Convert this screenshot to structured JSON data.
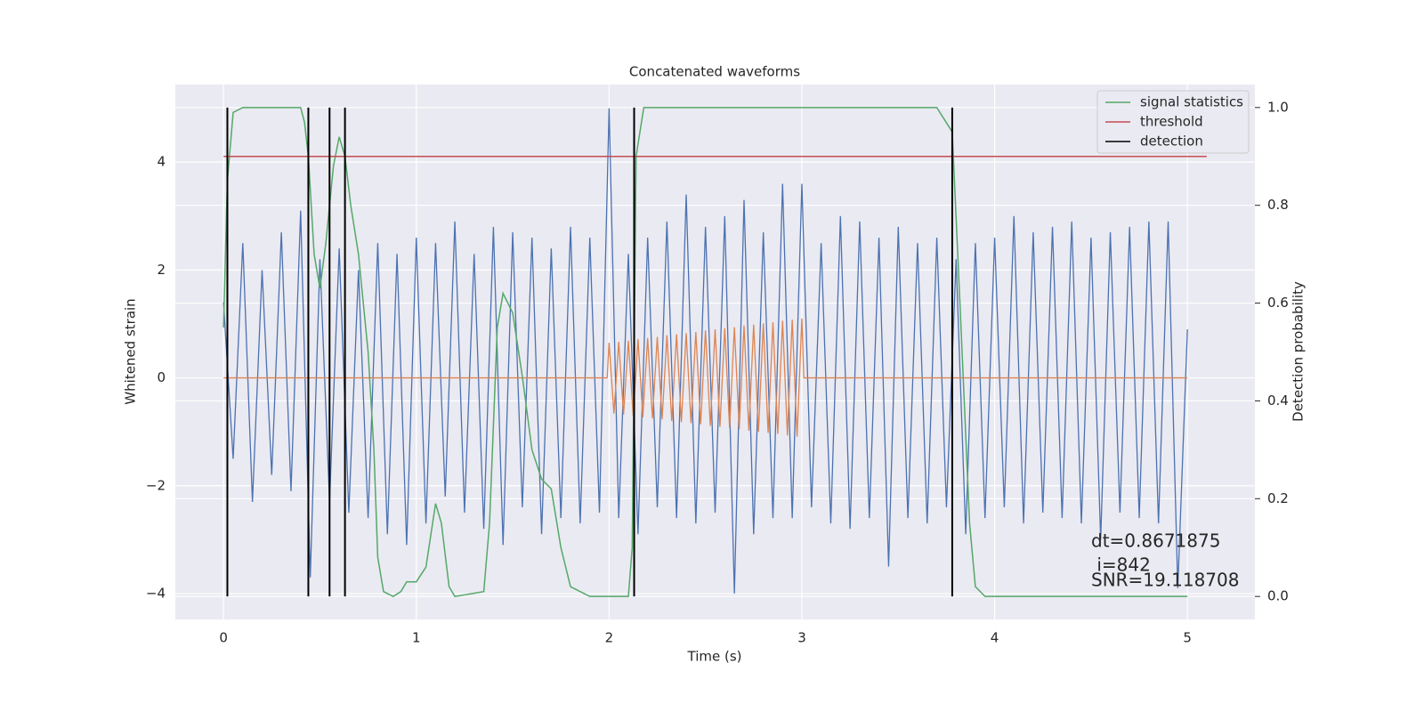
{
  "chart_data": {
    "type": "line",
    "title": "Concatenated waveforms",
    "xlabel": "Time (s)",
    "ylabel": "Whitened strain",
    "y2label": "Detection probability",
    "xlim": [
      -0.25,
      5.35
    ],
    "ylim": [
      -4.48,
      5.44
    ],
    "y2lim": [
      -0.047,
      1.047
    ],
    "xticks": [
      0,
      1,
      2,
      3,
      4,
      5
    ],
    "yticks": [
      {
        "value": -4,
        "label": "−4"
      },
      {
        "value": -2,
        "label": "−2"
      },
      0,
      2,
      4
    ],
    "y2ticks": [
      {
        "value": 0,
        "label": "0.0"
      },
      {
        "value": 0.2,
        "label": "0.2"
      },
      {
        "value": 0.4,
        "label": "0.4"
      },
      {
        "value": 0.6,
        "label": "0.6"
      },
      {
        "value": 0.8,
        "label": "0.8"
      },
      {
        "value": 1,
        "label": "1.0"
      }
    ],
    "grid": true,
    "legend": "upper right",
    "series": [
      {
        "color": "#4c72b0",
        "x": [
          0,
          0.05,
          0.1,
          0.15,
          0.2,
          0.25,
          0.3,
          0.35,
          0.4,
          0.45,
          0.5,
          0.55,
          0.6,
          0.65,
          0.7,
          0.75,
          0.8,
          0.85,
          0.9,
          0.95,
          1.0,
          1.05,
          1.1,
          1.15,
          1.2,
          1.25,
          1.3,
          1.35,
          1.4,
          1.45,
          1.5,
          1.55,
          1.6,
          1.65,
          1.7,
          1.75,
          1.8,
          1.85,
          1.9,
          1.95,
          2.0,
          2.05,
          2.1,
          2.15,
          2.2,
          2.25,
          2.3,
          2.35,
          2.4,
          2.45,
          2.5,
          2.55,
          2.6,
          2.65,
          2.7,
          2.75,
          2.8,
          2.85,
          2.9,
          2.95,
          3.0,
          3.05,
          3.1,
          3.15,
          3.2,
          3.25,
          3.3,
          3.35,
          3.4,
          3.45,
          3.5,
          3.55,
          3.6,
          3.65,
          3.7,
          3.75,
          3.8,
          3.85,
          3.9,
          3.95,
          4.0,
          4.05,
          4.1,
          4.15,
          4.2,
          4.25,
          4.3,
          4.35,
          4.4,
          4.45,
          4.5,
          4.55,
          4.6,
          4.65,
          4.7,
          4.75,
          4.8,
          4.85,
          4.9,
          4.95,
          5.0
        ],
        "values": [
          1.4,
          -1.5,
          2.5,
          -2.3,
          2.0,
          -1.8,
          2.7,
          -2.1,
          3.1,
          -3.7,
          2.2,
          -2.3,
          2.4,
          -2.5,
          2.0,
          -2.6,
          2.5,
          -2.9,
          2.3,
          -3.1,
          2.6,
          -2.7,
          2.5,
          -2.2,
          2.9,
          -2.5,
          2.3,
          -2.8,
          2.8,
          -3.1,
          2.7,
          -2.4,
          2.6,
          -2.9,
          2.4,
          -2.6,
          2.8,
          -2.7,
          2.6,
          -2.5,
          5.0,
          -2.6,
          2.3,
          -2.9,
          2.6,
          -2.4,
          2.9,
          -2.6,
          3.4,
          -2.7,
          2.8,
          -2.5,
          3.0,
          -4.0,
          3.3,
          -2.9,
          2.7,
          -2.6,
          3.6,
          -2.6,
          3.6,
          -2.4,
          2.5,
          -2.7,
          3.0,
          -2.8,
          2.9,
          -2.6,
          2.6,
          -3.5,
          2.8,
          -2.6,
          2.5,
          -2.7,
          2.6,
          -2.4,
          2.2,
          -2.9,
          2.5,
          -2.6,
          2.6,
          -2.4,
          3.0,
          -2.7,
          2.7,
          -2.5,
          2.8,
          -2.6,
          2.9,
          -2.7,
          2.6,
          -3.0,
          2.7,
          -2.5,
          2.8,
          -2.6,
          2.9,
          -2.7,
          2.9,
          -3.9,
          0.9
        ]
      },
      {
        "color": "#dd8452",
        "x": [
          0,
          1.99,
          2.0,
          2.025,
          2.05,
          2.075,
          2.1,
          2.125,
          2.15,
          2.175,
          2.2,
          2.225,
          2.25,
          2.275,
          2.3,
          2.325,
          2.35,
          2.375,
          2.4,
          2.425,
          2.45,
          2.475,
          2.5,
          2.525,
          2.55,
          2.575,
          2.6,
          2.625,
          2.65,
          2.675,
          2.7,
          2.725,
          2.75,
          2.775,
          2.8,
          2.825,
          2.85,
          2.875,
          2.9,
          2.925,
          2.95,
          2.975,
          3.0,
          3.01,
          5.0
        ],
        "values": [
          0,
          0,
          0.65,
          -0.66,
          0.67,
          -0.68,
          0.69,
          -0.71,
          0.72,
          -0.73,
          0.74,
          -0.75,
          0.76,
          -0.77,
          0.79,
          -0.8,
          0.81,
          -0.82,
          0.83,
          -0.84,
          0.85,
          -0.86,
          0.88,
          -0.89,
          0.9,
          -0.91,
          0.92,
          -0.93,
          0.94,
          -0.95,
          0.97,
          -0.98,
          0.99,
          -1.0,
          1.01,
          -1.02,
          1.03,
          -1.04,
          1.06,
          -1.07,
          1.08,
          -1.09,
          1.1,
          0,
          0
        ]
      },
      {
        "name": "signal statistics",
        "color": "#55a868",
        "axis": "y2",
        "x": [
          0,
          0.02,
          0.05,
          0.1,
          0.4,
          0.42,
          0.44,
          0.47,
          0.5,
          0.53,
          0.57,
          0.6,
          0.63,
          0.66,
          0.7,
          0.75,
          0.78,
          0.8,
          0.83,
          0.88,
          0.92,
          0.95,
          1.0,
          1.05,
          1.1,
          1.13,
          1.17,
          1.2,
          1.35,
          1.38,
          1.42,
          1.45,
          1.5,
          1.55,
          1.6,
          1.65,
          1.7,
          1.75,
          1.8,
          1.9,
          2.1,
          2.12,
          2.14,
          2.18,
          3.7,
          3.78,
          3.82,
          3.87,
          3.9,
          3.95,
          5.0
        ],
        "values": [
          0.55,
          0.85,
          0.99,
          1.0,
          1.0,
          0.97,
          0.9,
          0.7,
          0.63,
          0.72,
          0.88,
          0.94,
          0.9,
          0.8,
          0.7,
          0.5,
          0.3,
          0.08,
          0.01,
          0.0,
          0.01,
          0.03,
          0.03,
          0.06,
          0.19,
          0.15,
          0.02,
          0.0,
          0.01,
          0.15,
          0.55,
          0.62,
          0.58,
          0.45,
          0.3,
          0.24,
          0.22,
          0.1,
          0.02,
          0.0,
          0.0,
          0.1,
          0.9,
          1.0,
          1.0,
          0.95,
          0.6,
          0.15,
          0.02,
          0.0,
          0.0
        ]
      },
      {
        "name": "threshold",
        "color": "#c44e52",
        "axis": "y2",
        "x": [
          0,
          5.1
        ],
        "values": [
          0.9,
          0.9
        ]
      }
    ],
    "detection": {
      "name": "detection",
      "color": "#000000",
      "axis": "y2",
      "span": [
        0,
        1
      ],
      "x": [
        0.02,
        0.44,
        0.55,
        0.63,
        2.13,
        3.78
      ]
    },
    "annotations": [
      "dt=0.8671875",
      " i=842",
      "SNR=19.118708"
    ]
  }
}
